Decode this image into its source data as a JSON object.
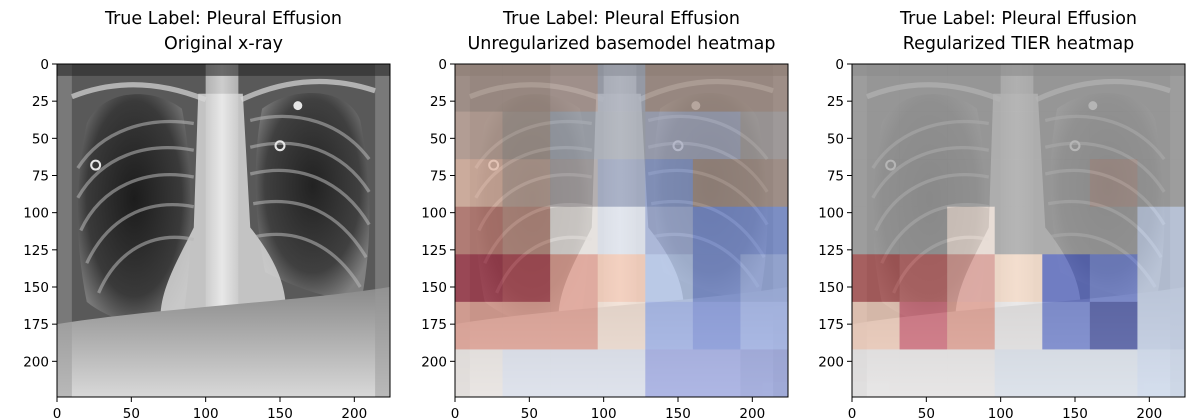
{
  "panels": [
    {
      "title_line1": "True Label: Pleural Effusion",
      "title_line2": "Original x-ray",
      "overlay": "none"
    },
    {
      "title_line1": "True Label: Pleural Effusion",
      "title_line2": "Unregularized basemodel heatmap",
      "overlay": "heatmap",
      "heatmap_grid": [
        [
          "#a9958b",
          "#a9958b",
          "#b39f98",
          "#a7acb9",
          "#a9958b",
          "#a9958b",
          "#a9958b"
        ],
        [
          "#c2a89c",
          "#ab9d95",
          "#a8adb7",
          "#a8adb7",
          "#a6abc0",
          "#a6abc0",
          "#a9a3a2"
        ],
        [
          "#e2b9a7",
          "#c2a89c",
          "#b0aaab",
          "#9aa4bf",
          "#8c9ed0",
          "#a9958b",
          "#a9958b"
        ],
        [
          "#c07d74",
          "#c39487",
          "#f0ebe7",
          "#e1e6f0",
          "#a6b5df",
          "#7e94d8",
          "#7e94d8"
        ],
        [
          "#a33a4c",
          "#b34e58",
          "#e8a597",
          "#f7cbb6",
          "#b8cbf0",
          "#7e94d8",
          "#9aaee4"
        ],
        [
          "#e8a597",
          "#e8a597",
          "#e8a597",
          "#f7e3d6",
          "#a6b9f0",
          "#8b9fe6",
          "#a6b9f0"
        ],
        [
          "#efeae7",
          "#e1e6f2",
          "#e1e6f2",
          "#e1e6f2",
          "#a3aee8",
          "#a3aee8",
          "#9aa6e0"
        ]
      ]
    },
    {
      "title_line1": "True Label: Pleural Effusion",
      "title_line2": "Regularized TIER heatmap",
      "overlay": "heatmap",
      "heatmap_grid": [
        [
          "#a8a8a8",
          "#a8a8a8",
          "#a8a8a8",
          "#a8a8a8",
          "#a8a8a8",
          "#a8a8a8",
          "#a8a8a8"
        ],
        [
          "#a8a8a8",
          "#a8a8a8",
          "#a8a8a8",
          "#a8a8a8",
          "#a8a8a8",
          "#a8a8a8",
          "#a8a8a8"
        ],
        [
          "#a8a8a8",
          "#a8a8a8",
          "#a8a8a8",
          "#a8a8a8",
          "#a8a8a8",
          "#b39f98",
          "#a8a8a8"
        ],
        [
          "#a8a8a8",
          "#a8a8a8",
          "#f3e5dc",
          "#a8a8a8",
          "#a8a8a8",
          "#a8a8a8",
          "#c9d6ee"
        ],
        [
          "#b35a5a",
          "#c36c6c",
          "#e2a39b",
          "#f7dcc8",
          "#5a6ac2",
          "#7688d6",
          "#c9d6ee"
        ],
        [
          "#f7d2bf",
          "#d7707f",
          "#e8a597",
          "#eceaea",
          "#7688d6",
          "#4e5aa8",
          "#c9d6ee"
        ],
        [
          "#eceaea",
          "#eceaea",
          "#eceaea",
          "#dfe6f0",
          "#dfe6f0",
          "#dfe6f0",
          "#d4e0f4"
        ]
      ]
    }
  ],
  "axes": {
    "y_ticks": [
      "0",
      "25",
      "50",
      "75",
      "100",
      "125",
      "150",
      "175",
      "200"
    ],
    "x_ticks": [
      "0",
      "50",
      "100",
      "150",
      "200"
    ],
    "extent": [
      0,
      224
    ]
  }
}
